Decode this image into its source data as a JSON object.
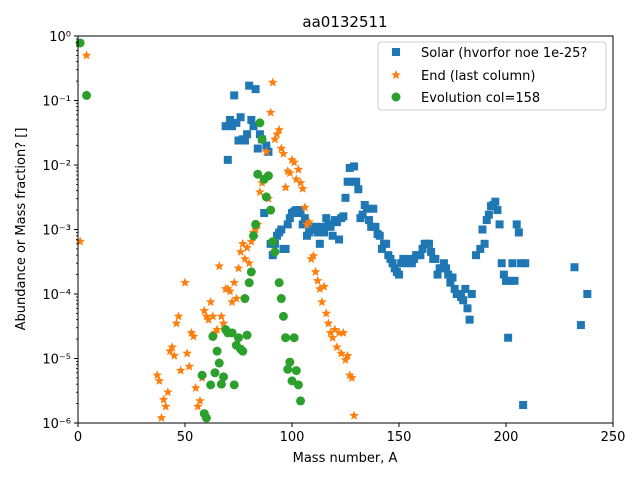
{
  "chart_data": {
    "type": "scatter",
    "title": "aa0132511",
    "xlabel": "Mass number, A",
    "ylabel": "Abundance or Mass fraction? []",
    "xlim": [
      0,
      250
    ],
    "ylim": [
      1e-06,
      1
    ],
    "yscale": "log",
    "grid": false,
    "legend_position": "top-right",
    "x_ticks": [
      0,
      50,
      100,
      150,
      200,
      250
    ],
    "x_tick_labels": [
      "0",
      "50",
      "100",
      "150",
      "200",
      "250"
    ],
    "y_ticks": [
      1e-06,
      1e-05,
      0.0001,
      0.001,
      0.01,
      0.1,
      1
    ],
    "y_tick_labels": [
      "10⁻⁶",
      "10⁻⁵",
      "10⁻⁴",
      "10⁻³",
      "10⁻²",
      "10⁻¹",
      "10⁰"
    ],
    "series": [
      {
        "name": "Solar (hvorfor noe 1e-25?",
        "marker": "square",
        "color": "#1f77b4",
        "points": [
          [
            69,
            0.04
          ],
          [
            70,
            0.012
          ],
          [
            71,
            0.05
          ],
          [
            72,
            0.04
          ],
          [
            73,
            0.12
          ],
          [
            74,
            0.045
          ],
          [
            75,
            0.024
          ],
          [
            76,
            0.055
          ],
          [
            77,
            0.025
          ],
          [
            78,
            0.024
          ],
          [
            79,
            0.03
          ],
          [
            80,
            0.17
          ],
          [
            81,
            0.05
          ],
          [
            82,
            0.04
          ],
          [
            83,
            0.15
          ],
          [
            84,
            0.018
          ],
          [
            85,
            0.03
          ],
          [
            86,
            0.025
          ],
          [
            87,
            0.0018
          ],
          [
            88,
            0.02
          ],
          [
            89,
            0.016
          ],
          [
            90,
            0.0006
          ],
          [
            91,
            0.0004
          ],
          [
            92,
            0.0006
          ],
          [
            93,
            0.0008
          ],
          [
            94,
            0.0009
          ],
          [
            95,
            0.001
          ],
          [
            96,
            0.0005
          ],
          [
            97,
            0.0005
          ],
          [
            98,
            0.0012
          ],
          [
            99,
            0.0015
          ],
          [
            100,
            0.0018
          ],
          [
            101,
            0.0019
          ],
          [
            102,
            0.002
          ],
          [
            103,
            0.0018
          ],
          [
            104,
            0.002
          ],
          [
            105,
            0.0012
          ],
          [
            106,
            0.0015
          ],
          [
            107,
            0.0008
          ],
          [
            108,
            0.0009
          ],
          [
            109,
            0.0011
          ],
          [
            110,
            0.001
          ],
          [
            111,
            0.0011
          ],
          [
            112,
            0.0009
          ],
          [
            113,
            0.0006
          ],
          [
            114,
            0.0011
          ],
          [
            115,
            0.0009
          ],
          [
            116,
            0.0015
          ],
          [
            117,
            0.0012
          ],
          [
            118,
            0.0011
          ],
          [
            119,
            0.0008
          ],
          [
            120,
            0.0014
          ],
          [
            121,
            0.0013
          ],
          [
            122,
            0.0007
          ],
          [
            123,
            0.0015
          ],
          [
            124,
            0.0016
          ],
          [
            125,
            0.0031
          ],
          [
            126,
            0.0055
          ],
          [
            127,
            0.009
          ],
          [
            128,
            0.0055
          ],
          [
            129,
            0.0095
          ],
          [
            130,
            0.0055
          ],
          [
            131,
            0.0042
          ],
          [
            132,
            0.0015
          ],
          [
            133,
            0.0017
          ],
          [
            134,
            0.0024
          ],
          [
            135,
            0.0021
          ],
          [
            136,
            0.0014
          ],
          [
            137,
            0.0011
          ],
          [
            138,
            0.0021
          ],
          [
            139,
            0.0011
          ],
          [
            140,
            0.00085
          ],
          [
            141,
            0.0008
          ],
          [
            142,
            0.0005
          ],
          [
            143,
            0.0006
          ],
          [
            144,
            0.0006
          ],
          [
            145,
            0.0004
          ],
          [
            146,
            0.00035
          ],
          [
            147,
            0.0003
          ],
          [
            148,
            0.00025
          ],
          [
            149,
            0.00022
          ],
          [
            150,
            0.0002
          ],
          [
            151,
            0.0003
          ],
          [
            152,
            0.00035
          ],
          [
            153,
            0.00033
          ],
          [
            154,
            0.0003
          ],
          [
            155,
            0.00035
          ],
          [
            156,
            0.0003
          ],
          [
            157,
            0.00035
          ],
          [
            158,
            0.0004
          ],
          [
            159,
            0.0004
          ],
          [
            160,
            0.0004
          ],
          [
            161,
            0.0005
          ],
          [
            162,
            0.0006
          ],
          [
            163,
            0.0006
          ],
          [
            164,
            0.0006
          ],
          [
            165,
            0.00045
          ],
          [
            166,
            0.00035
          ],
          [
            167,
            0.00035
          ],
          [
            168,
            0.0002
          ],
          [
            169,
            0.00025
          ],
          [
            170,
            0.00025
          ],
          [
            171,
            0.0003
          ],
          [
            172,
            0.00025
          ],
          [
            173,
            0.0002
          ],
          [
            174,
            0.00015
          ],
          [
            175,
            0.00018
          ],
          [
            176,
            0.00012
          ],
          [
            177,
            0.0001
          ],
          [
            178,
            0.0001
          ],
          [
            179,
            9e-05
          ],
          [
            180,
            8e-05
          ],
          [
            181,
            0.00012
          ],
          [
            182,
            6e-05
          ],
          [
            183,
            4e-05
          ],
          [
            184,
            0.0001
          ],
          [
            186,
            0.0004
          ],
          [
            188,
            0.0005
          ],
          [
            189,
            0.001
          ],
          [
            190,
            0.0006
          ],
          [
            191,
            0.0014
          ],
          [
            192,
            0.0017
          ],
          [
            193,
            0.0023
          ],
          [
            194,
            0.0024
          ],
          [
            195,
            0.0027
          ],
          [
            196,
            0.002
          ],
          [
            197,
            0.0012
          ],
          [
            198,
            0.0003
          ],
          [
            199,
            0.0002
          ],
          [
            200,
            0.00016
          ],
          [
            201,
            2.1e-05
          ],
          [
            202,
            0.00016
          ],
          [
            203,
            0.0003
          ],
          [
            204,
            0.00016
          ],
          [
            205,
            0.0012
          ],
          [
            206,
            0.0009
          ],
          [
            207,
            0.0003
          ],
          [
            208,
            1.9e-06
          ],
          [
            209,
            0.0003
          ],
          [
            232,
            0.00026
          ],
          [
            235,
            3.3e-05
          ],
          [
            238,
            0.0001
          ]
        ]
      },
      {
        "name": "End (last column)",
        "marker": "star",
        "color": "#ff7f0e",
        "points": [
          [
            1,
            0.00065
          ],
          [
            4,
            0.5
          ],
          [
            37,
            5.5e-06
          ],
          [
            38,
            4.5e-06
          ],
          [
            39,
            1.2e-06
          ],
          [
            40,
            2.3e-06
          ],
          [
            41,
            1.8e-06
          ],
          [
            42,
            3e-06
          ],
          [
            43,
            1.3e-05
          ],
          [
            44,
            1.5e-05
          ],
          [
            45,
            1.1e-05
          ],
          [
            46,
            3.5e-05
          ],
          [
            47,
            4.5e-05
          ],
          [
            48,
            6.5e-06
          ],
          [
            50,
            0.00015
          ],
          [
            51,
            1.2e-05
          ],
          [
            52,
            7.5e-06
          ],
          [
            53,
            2.5e-05
          ],
          [
            54,
            2.2e-05
          ],
          [
            55,
            3.5e-06
          ],
          [
            56,
            1.8e-06
          ],
          [
            57,
            2.2e-06
          ],
          [
            58,
            5e-06
          ],
          [
            59,
            5.5e-05
          ],
          [
            60,
            4.5e-05
          ],
          [
            61,
            4e-05
          ],
          [
            62,
            7.5e-05
          ],
          [
            63,
            4.5e-05
          ],
          [
            64,
            2.5e-05
          ],
          [
            65,
            2.8e-05
          ],
          [
            66,
            0.00027
          ],
          [
            67,
            4.5e-05
          ],
          [
            68,
            3.5e-05
          ],
          [
            69,
            0.00012
          ],
          [
            70,
            0.00012
          ],
          [
            71,
            0.00011
          ],
          [
            72,
            7.5e-05
          ],
          [
            73,
            0.00015
          ],
          [
            74,
            8.5e-05
          ],
          [
            75,
            0.00025
          ],
          [
            76,
            0.00045
          ],
          [
            77,
            0.0006
          ],
          [
            78,
            0.00035
          ],
          [
            79,
            0.00052
          ],
          [
            80,
            0.0003
          ],
          [
            81,
            0.00065
          ],
          [
            82,
            0.0009
          ],
          [
            83,
            0.001
          ],
          [
            84,
            0.0012
          ],
          [
            85,
            0.0038
          ],
          [
            86,
            0.0053
          ],
          [
            87,
            0.0062
          ],
          [
            88,
            0.016
          ],
          [
            89,
            0.003
          ],
          [
            90,
            0.065
          ],
          [
            91,
            0.19
          ],
          [
            92,
            0.025
          ],
          [
            93,
            0.03
          ],
          [
            94,
            0.035
          ],
          [
            95,
            0.018
          ],
          [
            96,
            0.015
          ],
          [
            97,
            0.0045
          ],
          [
            98,
            0.008
          ],
          [
            99,
            0.0075
          ],
          [
            100,
            0.012
          ],
          [
            101,
            0.011
          ],
          [
            102,
            0.006
          ],
          [
            103,
            0.0085
          ],
          [
            104,
            0.0053
          ],
          [
            105,
            0.0043
          ],
          [
            106,
            0.0022
          ],
          [
            107,
            0.0012
          ],
          [
            108,
            0.0013
          ],
          [
            109,
            0.00035
          ],
          [
            110,
            0.00039
          ],
          [
            111,
            0.00022
          ],
          [
            112,
            0.00016
          ],
          [
            113,
            0.00012
          ],
          [
            114,
            7.5e-05
          ],
          [
            115,
            0.00013
          ],
          [
            116,
            5e-05
          ],
          [
            117,
            3.5e-05
          ],
          [
            118,
            2.5e-05
          ],
          [
            119,
            2.1e-05
          ],
          [
            120,
            2.8e-05
          ],
          [
            121,
            1.5e-05
          ],
          [
            122,
            2.5e-05
          ],
          [
            123,
            1.2e-05
          ],
          [
            124,
            2.5e-05
          ],
          [
            125,
            9.5e-06
          ],
          [
            126,
            1.1e-05
          ],
          [
            127,
            5.5e-06
          ],
          [
            128,
            5e-06
          ],
          [
            129,
            1.3e-06
          ]
        ]
      },
      {
        "name": "Evolution col=158",
        "marker": "circle",
        "color": "#2ca02c",
        "points": [
          [
            1,
            0.78
          ],
          [
            4,
            0.12
          ],
          [
            58,
            5.5e-06
          ],
          [
            59,
            1.4e-06
          ],
          [
            60,
            1.2e-06
          ],
          [
            62,
            3.9e-06
          ],
          [
            63,
            2.2e-05
          ],
          [
            64,
            6e-06
          ],
          [
            65,
            1.3e-05
          ],
          [
            66,
            8.5e-06
          ],
          [
            67,
            4e-06
          ],
          [
            68,
            5.2e-06
          ],
          [
            69,
            2.8e-05
          ],
          [
            70,
            2.5e-05
          ],
          [
            72,
            2.5e-05
          ],
          [
            73,
            3.9e-06
          ],
          [
            74,
            1.6e-05
          ],
          [
            75,
            2.1e-05
          ],
          [
            76,
            1.4e-05
          ],
          [
            77,
            1.3e-05
          ],
          [
            78,
            8.5e-05
          ],
          [
            79,
            2.3e-05
          ],
          [
            80,
            0.00015
          ],
          [
            81,
            0.00022
          ],
          [
            82,
            0.0008
          ],
          [
            83,
            0.0012
          ],
          [
            84,
            0.0072
          ],
          [
            85,
            0.045
          ],
          [
            86,
            0.025
          ],
          [
            87,
            0.006
          ],
          [
            88,
            0.0032
          ],
          [
            89,
            0.0068
          ],
          [
            90,
            0.002
          ],
          [
            91,
            0.00065
          ],
          [
            92,
            0.00045
          ],
          [
            94,
            0.00015
          ],
          [
            95,
            8.5e-05
          ],
          [
            96,
            4.5e-05
          ],
          [
            97,
            2.1e-05
          ],
          [
            98,
            6.8e-06
          ],
          [
            99,
            8.8e-06
          ],
          [
            100,
            4.5e-06
          ],
          [
            101,
            2.1e-05
          ],
          [
            102,
            6.5e-06
          ],
          [
            103,
            3.9e-06
          ],
          [
            104,
            2.2e-06
          ]
        ]
      }
    ]
  }
}
